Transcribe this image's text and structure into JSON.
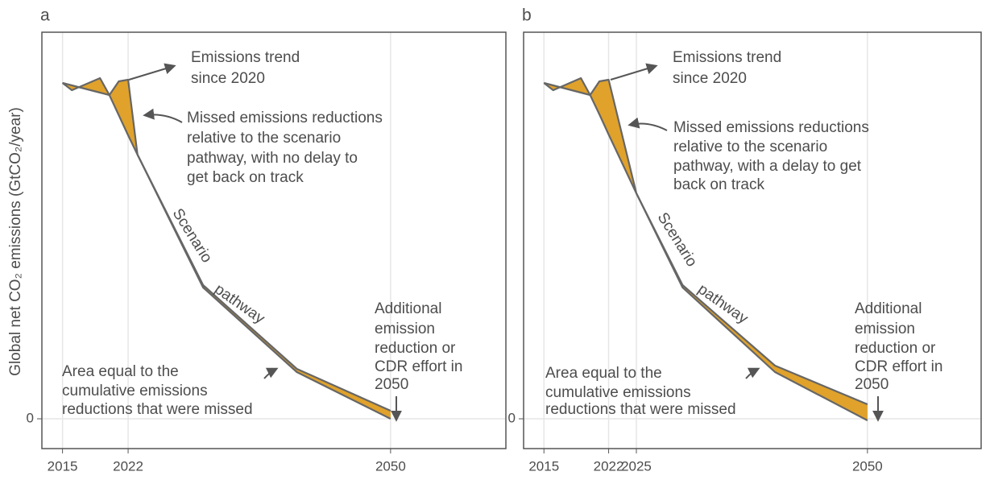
{
  "chart_data": [
    {
      "type": "line",
      "title": "a",
      "y_label": "Global net CO₂ emissions (GtCO₂/year)",
      "x": [
        2015,
        2016,
        2017,
        2018,
        2019,
        2020,
        2021,
        2022,
        2023,
        2030,
        2040,
        2050
      ],
      "series": [
        {
          "color": "#666666",
          "values": [
            41.7,
            41.4,
            41.1,
            40.8,
            40.5,
            40.2,
            37.7,
            35.2,
            32.8,
            16.3,
            5.8,
            0
          ]
        },
        {
          "color": "#666666",
          "values": [
            41.7,
            40.8,
            41.3,
            41.8,
            42.3,
            40.2,
            41.9,
            42.1,
            32.8,
            16.6,
            6.2,
            1.0
          ]
        }
      ],
      "fill_color": "#E0A22B",
      "xlim": [
        2012.8,
        2062.3
      ],
      "ylim": [
        -3.7,
        48
      ],
      "xticks": [
        2015,
        2022,
        2050
      ],
      "yticks": [
        0
      ],
      "grid": true,
      "annotations": [
        [
          "Emissions trend",
          "since 2020"
        ],
        [
          "Missed emissions reductions",
          "relative to the scenario",
          "pathway, with no delay to",
          "get back on track"
        ],
        [
          "Scenario",
          "pathway"
        ],
        [
          "Additional",
          "emission",
          "reduction or",
          "CDR effort in",
          "2050"
        ],
        [
          "Area equal to the",
          "cumulative emissions",
          "reductions that were missed"
        ]
      ]
    },
    {
      "type": "line",
      "title": "b",
      "x": [
        2015,
        2016,
        2017,
        2018,
        2019,
        2020,
        2021,
        2022,
        2025,
        2030,
        2040,
        2050
      ],
      "series": [
        {
          "color": "#666666",
          "values": [
            41.7,
            41.4,
            41.1,
            40.8,
            40.5,
            40.2,
            37.8,
            35.3,
            28.0,
            16.3,
            5.8,
            -0.2
          ]
        },
        {
          "color": "#666666",
          "values": [
            41.7,
            40.8,
            41.3,
            41.8,
            42.3,
            40.2,
            41.9,
            42.1,
            28.0,
            16.6,
            6.6,
            1.8
          ]
        }
      ],
      "fill_color": "#E0A22B",
      "xlim": [
        2012.8,
        2062.3
      ],
      "ylim": [
        -3.7,
        48
      ],
      "xticks": [
        2015,
        2022,
        2025,
        2050
      ],
      "yticks": [
        0
      ],
      "grid": true,
      "annotations": [
        [
          "Emissions trend",
          "since 2020"
        ],
        [
          "Missed emissions reductions",
          "relative to the scenario",
          "pathway, with a delay to get",
          "back on track"
        ],
        [
          "Scenario",
          "pathway"
        ],
        [
          "Additional",
          "emission",
          "reduction or",
          "CDR effort in",
          "2050"
        ],
        [
          "Area equal to the",
          "cumulative emissions",
          "reductions that were missed"
        ]
      ]
    }
  ]
}
